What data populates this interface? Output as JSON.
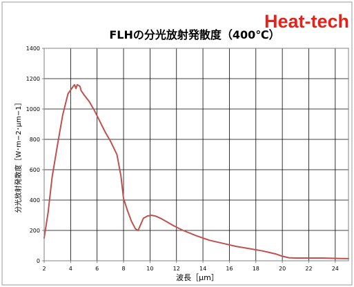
{
  "brand": {
    "text": "Heat-tech",
    "color": "#e8201a"
  },
  "chart_data": {
    "type": "line",
    "title": "FLHの分光放射発散度（400℃）",
    "xlabel": "波長［μm］",
    "ylabel": "分光放射発散度［W･m−2･μm−1］",
    "xlim": [
      2,
      25
    ],
    "ylim": [
      0,
      1400
    ],
    "x_ticks": [
      "2",
      "4",
      "6",
      "8",
      "10",
      "12",
      "14",
      "16",
      "18",
      "20",
      "22",
      "24"
    ],
    "y_ticks": [
      "0",
      "200",
      "400",
      "600",
      "800",
      "1000",
      "1200",
      "1400"
    ],
    "grid": true,
    "colors": {
      "line": "#c0504d",
      "grid": "#000000",
      "frame": "#808080"
    },
    "series": [
      {
        "x": [
          2.0,
          2.3,
          2.6,
          3.0,
          3.4,
          3.8,
          4.0,
          4.2,
          4.3,
          4.4,
          4.5,
          4.6,
          4.7,
          4.8,
          5.0,
          5.4,
          5.8,
          6.2,
          6.6,
          7.0,
          7.5,
          7.8,
          8.0,
          8.3,
          8.6,
          8.9,
          9.1,
          9.3,
          9.5,
          9.8,
          10.1,
          10.4,
          10.8,
          11.2,
          11.8,
          12.5,
          13.5,
          14.5,
          15.5,
          16.5,
          17.5,
          18.5,
          19.0,
          19.5,
          20.0,
          20.5,
          21.0,
          21.5,
          22.0,
          22.5,
          23.0,
          23.5,
          24.0,
          24.5,
          25.0
        ],
        "y": [
          150,
          320,
          550,
          760,
          960,
          1100,
          1125,
          1150,
          1160,
          1135,
          1160,
          1155,
          1150,
          1120,
          1095,
          1050,
          990,
          920,
          850,
          790,
          700,
          560,
          410,
          330,
          260,
          210,
          200,
          240,
          280,
          295,
          300,
          295,
          280,
          260,
          230,
          200,
          165,
          135,
          115,
          95,
          80,
          65,
          55,
          45,
          30,
          20,
          18,
          18,
          18,
          18,
          18,
          17,
          16,
          15,
          14
        ]
      }
    ]
  }
}
